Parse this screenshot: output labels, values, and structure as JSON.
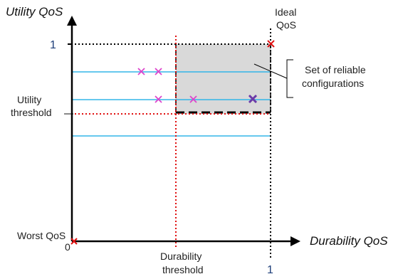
{
  "axes": {
    "y_title": "Utility QoS",
    "x_title": "Durability QoS",
    "y_max_label": "1",
    "x_max_label": "1",
    "origin_label": "0"
  },
  "labels": {
    "ideal_line1": "Ideal",
    "ideal_line2": "QoS",
    "worst": "Worst QoS",
    "utility_threshold_line1": "Utility",
    "utility_threshold_line2": "threshold",
    "durability_threshold_line1": "Durability",
    "durability_threshold_line2": "threshold",
    "reliable_line1": "Set of reliable",
    "reliable_line2": "configurations"
  },
  "colors": {
    "axis": "#000000",
    "blue_lines": "#33b5e8",
    "threshold_red": "#e01010",
    "marker_pink": "#dd44cc",
    "marker_purple": "#6a3aa8",
    "marker_red": "#e01010",
    "region_fill": "#d9d9d9",
    "one_label": "#1f3f7a"
  }
}
